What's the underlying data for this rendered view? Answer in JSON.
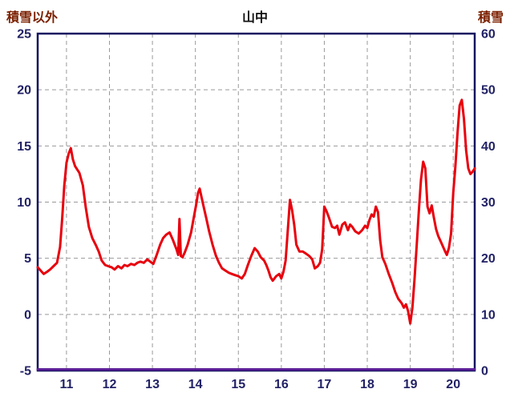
{
  "header": {
    "left_axis_title": "積雪以外",
    "title": "山中",
    "right_axis_title": "積雪"
  },
  "colors": {
    "grid": "#9a9a9a",
    "border": "#151560",
    "tick_text": "#222266",
    "temp_line": "#e8000d",
    "snow_line": "#5a1e96"
  },
  "chart_data": {
    "type": "line",
    "title": "山中",
    "left_axis": {
      "label": "積雪以外",
      "min": -5,
      "max": 25,
      "ticks": [
        25,
        20,
        15,
        10,
        5,
        0,
        -5
      ]
    },
    "right_axis": {
      "label": "積雪",
      "min": 0,
      "max": 60,
      "ticks": [
        60,
        50,
        40,
        30,
        20,
        10,
        0
      ]
    },
    "x_axis": {
      "min": 10.33,
      "max": 20.5,
      "ticks": [
        11,
        12,
        13,
        14,
        15,
        16,
        17,
        18,
        19,
        20
      ]
    },
    "grid": true,
    "legend": "none",
    "series": [
      {
        "name": "積雪以外",
        "axis": "left",
        "color": "#e8000d",
        "width": 3,
        "x": [
          10.33,
          10.4,
          10.47,
          10.55,
          10.62,
          10.7,
          10.78,
          10.85,
          10.9,
          10.95,
          11.0,
          11.05,
          11.1,
          11.15,
          11.2,
          11.25,
          11.3,
          11.38,
          11.45,
          11.52,
          11.6,
          11.68,
          11.75,
          11.82,
          11.9,
          11.97,
          12.05,
          12.12,
          12.2,
          12.28,
          12.35,
          12.42,
          12.5,
          12.58,
          12.65,
          12.72,
          12.8,
          12.88,
          12.95,
          13.02,
          13.1,
          13.18,
          13.25,
          13.32,
          13.4,
          13.48,
          13.52,
          13.56,
          13.6,
          13.63,
          13.66,
          13.7,
          13.75,
          13.82,
          13.9,
          13.97,
          14.02,
          14.06,
          14.1,
          14.18,
          14.25,
          14.32,
          14.4,
          14.48,
          14.55,
          14.62,
          14.7,
          14.78,
          14.85,
          14.92,
          15.0,
          15.08,
          15.15,
          15.22,
          15.3,
          15.38,
          15.45,
          15.52,
          15.6,
          15.65,
          15.7,
          15.75,
          15.8,
          15.88,
          15.95,
          16.0,
          16.05,
          16.1,
          16.15,
          16.2,
          16.25,
          16.3,
          16.35,
          16.42,
          16.5,
          16.58,
          16.65,
          16.72,
          16.78,
          16.85,
          16.9,
          16.95,
          17.0,
          17.05,
          17.1,
          17.18,
          17.25,
          17.3,
          17.35,
          17.42,
          17.48,
          17.55,
          17.6,
          17.65,
          17.72,
          17.8,
          17.88,
          17.95,
          18.0,
          18.05,
          18.1,
          18.15,
          18.2,
          18.25,
          18.3,
          18.35,
          18.42,
          18.5,
          18.58,
          18.65,
          18.72,
          18.8,
          18.85,
          18.9,
          18.95,
          19.0,
          19.05,
          19.1,
          19.15,
          19.2,
          19.25,
          19.3,
          19.35,
          19.4,
          19.45,
          19.5,
          19.55,
          19.6,
          19.65,
          19.72,
          19.8,
          19.85,
          19.9,
          19.95,
          20.0,
          20.05,
          20.1,
          20.15,
          20.2,
          20.25,
          20.3,
          20.35,
          20.4,
          20.45,
          20.5
        ],
        "y": [
          4.2,
          3.9,
          3.6,
          3.8,
          4.0,
          4.3,
          4.6,
          6.0,
          8.5,
          11.5,
          13.5,
          14.3,
          14.8,
          13.8,
          13.2,
          12.9,
          12.6,
          11.5,
          9.5,
          7.8,
          6.8,
          6.2,
          5.6,
          4.8,
          4.4,
          4.3,
          4.2,
          4.0,
          4.3,
          4.1,
          4.4,
          4.3,
          4.5,
          4.4,
          4.6,
          4.7,
          4.6,
          4.9,
          4.7,
          4.5,
          5.3,
          6.2,
          6.8,
          7.1,
          7.3,
          6.6,
          6.2,
          5.8,
          5.3,
          8.5,
          5.2,
          5.1,
          5.5,
          6.2,
          7.3,
          8.8,
          9.8,
          10.8,
          11.2,
          9.8,
          8.6,
          7.4,
          6.2,
          5.2,
          4.6,
          4.1,
          3.9,
          3.7,
          3.6,
          3.5,
          3.4,
          3.2,
          3.6,
          4.4,
          5.2,
          5.9,
          5.6,
          5.1,
          4.8,
          4.4,
          3.9,
          3.3,
          3.0,
          3.4,
          3.6,
          3.2,
          3.8,
          4.8,
          7.5,
          10.2,
          9.3,
          8.0,
          6.2,
          5.6,
          5.6,
          5.4,
          5.2,
          4.9,
          4.1,
          4.3,
          4.6,
          5.8,
          9.6,
          9.2,
          8.7,
          7.8,
          7.7,
          7.9,
          7.1,
          8.0,
          8.2,
          7.5,
          8.0,
          7.8,
          7.4,
          7.2,
          7.5,
          7.9,
          7.7,
          8.4,
          8.9,
          8.7,
          9.6,
          9.1,
          6.6,
          5.1,
          4.5,
          3.6,
          2.8,
          2.0,
          1.4,
          1.0,
          0.6,
          0.9,
          0.3,
          -0.8,
          0.6,
          3.2,
          6.2,
          9.2,
          12.0,
          13.6,
          13.0,
          9.6,
          9.0,
          9.7,
          8.6,
          7.6,
          7.0,
          6.4,
          5.7,
          5.3,
          5.9,
          7.2,
          10.8,
          13.2,
          16.2,
          18.6,
          19.1,
          17.4,
          14.6,
          13.0,
          12.5,
          12.7,
          13.0
        ]
      },
      {
        "name": "積雪",
        "axis": "right",
        "color": "#5a1e96",
        "width": 3,
        "x": [
          10.33,
          20.5
        ],
        "y": [
          0,
          0
        ]
      }
    ]
  }
}
